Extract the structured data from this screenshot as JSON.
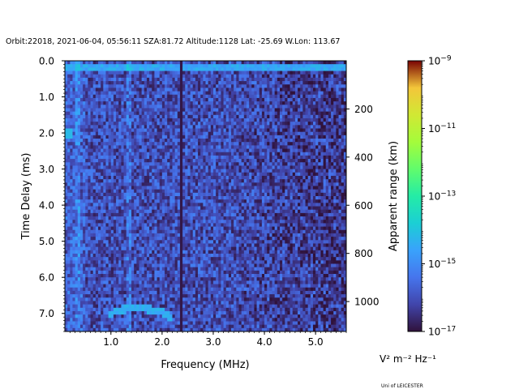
{
  "chart_data": {
    "type": "heatmap",
    "title": "Orbit:22018, 2021-06-04, 05:56:11 SZA:81.72 Altitude:1128 Lat: -25.69 W.Lon: 113.67",
    "xlabel": "Frequency (MHz)",
    "ylabel": "Time Delay (ms)",
    "y2label": "Apparent range (km)",
    "xlim": [
      0.1,
      5.6
    ],
    "ylim": [
      7.5,
      0.0
    ],
    "x_ticks": [
      1.0,
      2.0,
      3.0,
      4.0,
      5.0
    ],
    "x_tick_labels": [
      "1.0",
      "2.0",
      "3.0",
      "4.0",
      "5.0"
    ],
    "y_ticks": [
      0.0,
      1.0,
      2.0,
      3.0,
      4.0,
      5.0,
      6.0,
      7.0
    ],
    "y_tick_labels": [
      "0.0",
      "1.0",
      "2.0",
      "3.0",
      "4.0",
      "5.0",
      "6.0",
      "7.0"
    ],
    "y2_ticks": [
      200,
      400,
      600,
      800,
      1000
    ],
    "y2_tick_labels": [
      "200",
      "400",
      "600",
      "800",
      "1000"
    ],
    "y2_per_ms": 149.9,
    "y2_offset_km": 0,
    "colorbar": {
      "scale": "log",
      "min_exp": -17,
      "max_exp": -9,
      "ticks": [
        -17,
        -15,
        -13,
        -11,
        -9
      ],
      "tick_base": "10",
      "label": "V² m⁻² Hz⁻¹",
      "colormap": "turbo"
    },
    "features": {
      "ground_echo_band_ms": [
        0.1,
        0.25
      ],
      "vertical_lines_mhz": [
        0.35,
        1.35,
        2.38
      ],
      "trace_freq_mhz": [
        0.95,
        1.2,
        1.5,
        1.8,
        2.05,
        2.2
      ],
      "trace_delay_ms": [
        7.05,
        6.9,
        6.85,
        6.9,
        7.0,
        7.15
      ],
      "lowfreq_blob": {
        "freq_mhz": 0.15,
        "delay_ms": 2.0
      }
    },
    "noise_log10_range": [
      -16.8,
      -15.2
    ]
  },
  "footer": "Uni of LEICESTER"
}
